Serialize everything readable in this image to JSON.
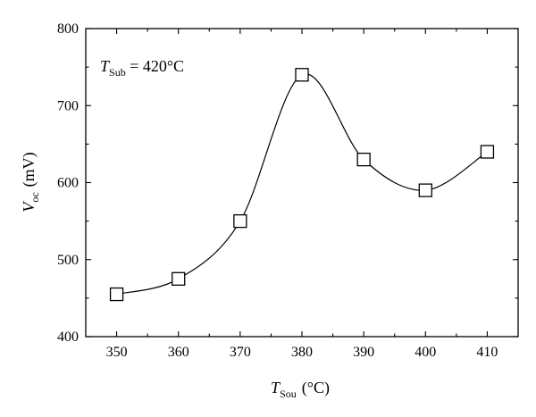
{
  "chart_data": {
    "type": "scatter",
    "x": [
      350,
      360,
      370,
      380,
      390,
      400,
      410
    ],
    "series": [
      {
        "values": [
          455,
          475,
          550,
          740,
          630,
          590,
          640
        ],
        "marker": "open-square",
        "line": "smooth"
      }
    ],
    "xlabel": {
      "main": "T",
      "sub": "Sou",
      "unit": "(°C)"
    },
    "ylabel": {
      "main": "V",
      "sub": "oc",
      "unit": "(mV)"
    },
    "xlim": [
      345,
      415
    ],
    "ylim": [
      400,
      800
    ],
    "xticks": [
      "350",
      "360",
      "370",
      "380",
      "390",
      "400",
      "410"
    ],
    "yticks": [
      "400",
      "500",
      "600",
      "700",
      "800"
    ],
    "annotation": {
      "main": "T",
      "sub": "Sub",
      "rest": " = 420°C"
    },
    "grid": false,
    "legend": "none"
  }
}
